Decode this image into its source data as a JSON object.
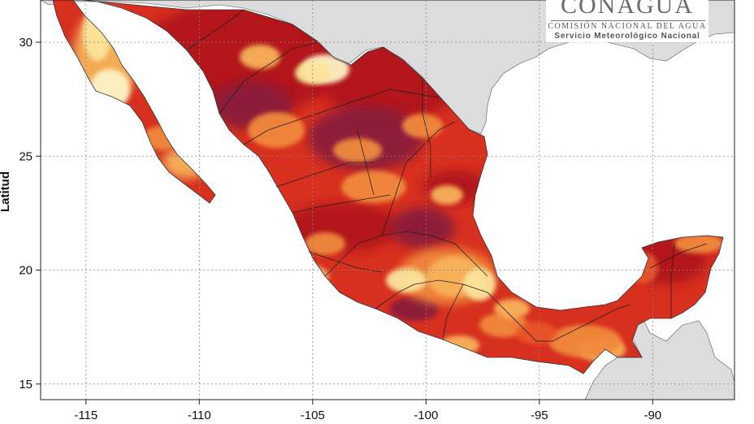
{
  "map": {
    "projection": "lon-lat",
    "x_ticks": [
      -115,
      -110,
      -105,
      -100,
      -95,
      -90
    ],
    "y_ticks": [
      15,
      20,
      25,
      30
    ],
    "x_labels": [
      "-115",
      "-110",
      "-105",
      "-100",
      "-95",
      "-90"
    ],
    "y_labels": [
      "15",
      "20",
      "25",
      "30"
    ],
    "y_axis_title": "Latitud",
    "grid": true,
    "colors": {
      "ocean": "#ffffff",
      "foreign_land": "#dcdcdc",
      "deep": "#8b1a3a",
      "dark_red": "#b0141a",
      "red": "#d7301f",
      "orange_red": "#e8552a",
      "orange": "#f08a3c",
      "light_orange": "#f7b15a",
      "yellow": "#fbe39a",
      "pale": "#fdf2c6",
      "state_border": "#222222"
    }
  },
  "logo": {
    "title": "CONAGUA",
    "line1": "COMISIÓN NACIONAL DEL AGUA",
    "line2": "Servicio Meteorológico Nacional"
  }
}
